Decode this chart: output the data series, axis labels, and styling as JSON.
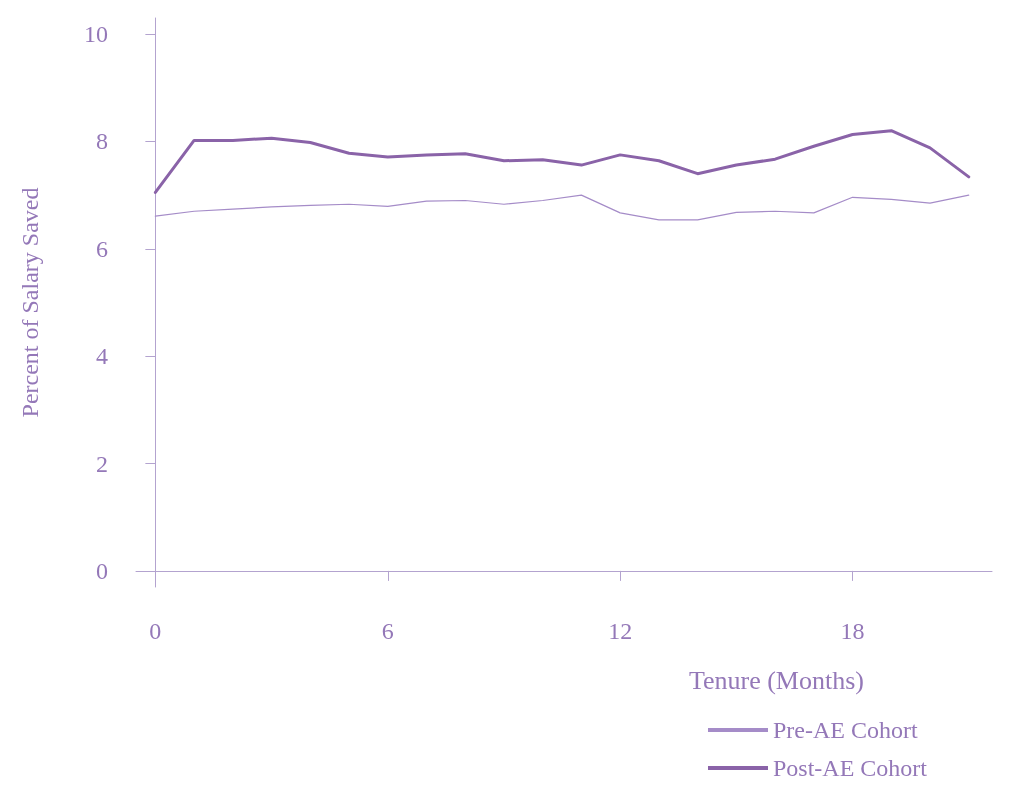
{
  "chart_data": {
    "type": "line",
    "xlabel": "Tenure (Months)",
    "ylabel": "Percent of Salary Saved",
    "x": [
      0,
      1,
      2,
      3,
      4,
      5,
      6,
      7,
      8,
      9,
      10,
      11,
      12,
      13,
      14,
      15,
      16,
      17,
      18,
      19,
      20,
      21
    ],
    "xlim": [
      -0.5,
      21.6
    ],
    "xticks": [
      0,
      6,
      12,
      18
    ],
    "ylim": [
      -0.3,
      10.3
    ],
    "yticks": [
      0,
      2,
      4,
      6,
      8,
      10
    ],
    "series": [
      {
        "name": "Pre-AE Cohort",
        "color": "#a58cc8",
        "values": [
          6.61,
          6.7,
          6.74,
          6.78,
          6.81,
          6.83,
          6.79,
          6.89,
          6.9,
          6.83,
          6.9,
          7.0,
          6.67,
          6.54,
          6.54,
          6.68,
          6.7,
          6.67,
          6.96,
          6.92,
          6.85,
          7.0
        ]
      },
      {
        "name": "Post-AE Cohort",
        "color": "#8a63a8",
        "values": [
          7.05,
          8.02,
          8.02,
          8.06,
          7.98,
          7.78,
          7.71,
          7.75,
          7.77,
          7.64,
          7.66,
          7.56,
          7.75,
          7.64,
          7.4,
          7.56,
          7.67,
          7.91,
          8.13,
          8.2,
          7.88,
          7.34
        ]
      }
    ],
    "grid": false,
    "legend": "bottom right",
    "marker": "none",
    "line_style": "solid"
  }
}
